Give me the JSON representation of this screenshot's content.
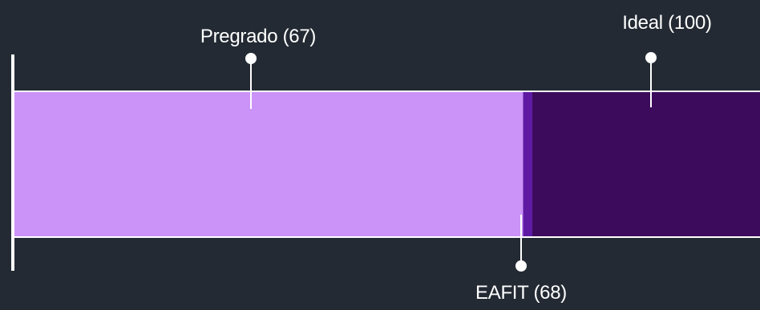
{
  "chart_data": {
    "type": "bar",
    "orientation": "horizontal",
    "xlim": [
      0,
      100
    ],
    "segments": [
      {
        "name": "Pregrado",
        "value": 67,
        "color": "#cb92f7"
      },
      {
        "name": "EAFIT",
        "value": 68,
        "color": "#5e1aa3"
      },
      {
        "name": "Ideal",
        "value": 100,
        "color": "#3d0b5c"
      }
    ],
    "annotations": [
      {
        "label": "Pregrado (67)",
        "value": 67,
        "position": "top"
      },
      {
        "label": "Ideal (100)",
        "value": 100,
        "position": "top"
      },
      {
        "label": "EAFIT (68)",
        "value": 68,
        "position": "bottom"
      }
    ],
    "colors": {
      "background": "#232a33",
      "bar_outline": "#ffffff",
      "baseline": "#ffffff",
      "marker": "#ffffff"
    }
  }
}
